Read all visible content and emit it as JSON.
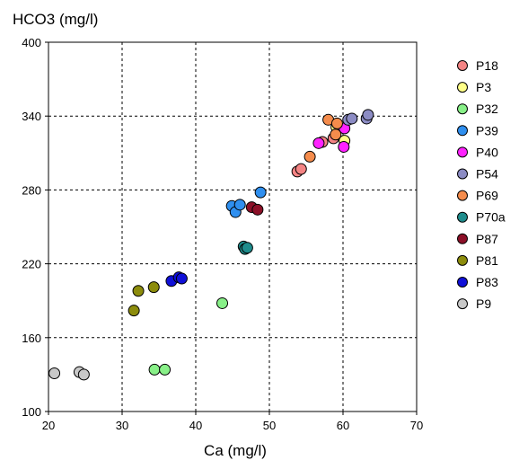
{
  "chart_data": {
    "type": "scatter",
    "xlabel": "Ca (mg/l)",
    "ylabel": "HCO3 (mg/l)",
    "xlim": [
      20,
      70
    ],
    "ylim": [
      100,
      400
    ],
    "xticks": [
      "20",
      "30",
      "40",
      "50",
      "60",
      "70"
    ],
    "yticks": [
      "100",
      "160",
      "220",
      "280",
      "340",
      "400"
    ],
    "grid": true,
    "legend_position": "right",
    "series": [
      {
        "name": "P18",
        "color": "#f48484",
        "points": [
          [
            53.8,
            295
          ],
          [
            54.3,
            297
          ],
          [
            57.2,
            319
          ],
          [
            58.7,
            322
          ]
        ]
      },
      {
        "name": "P3",
        "color": "#ffff88",
        "points": [
          [
            60.2,
            320
          ],
          [
            59.1,
            331
          ]
        ]
      },
      {
        "name": "P32",
        "color": "#88f088",
        "points": [
          [
            34.4,
            134
          ],
          [
            35.8,
            134
          ],
          [
            43.6,
            188
          ]
        ]
      },
      {
        "name": "P39",
        "color": "#2f8fef",
        "points": [
          [
            44.9,
            267
          ],
          [
            45.4,
            262
          ],
          [
            46.0,
            268
          ],
          [
            48.8,
            278
          ]
        ]
      },
      {
        "name": "P40",
        "color": "#ff22ff",
        "points": [
          [
            56.7,
            318
          ],
          [
            60.1,
            315
          ],
          [
            60.2,
            330
          ]
        ]
      },
      {
        "name": "P54",
        "color": "#8c8cc4",
        "points": [
          [
            60.7,
            337
          ],
          [
            61.2,
            338
          ],
          [
            63.2,
            338
          ],
          [
            63.4,
            341
          ]
        ]
      },
      {
        "name": "P69",
        "color": "#f58c4c",
        "points": [
          [
            55.5,
            307
          ],
          [
            58.0,
            337
          ],
          [
            59.0,
            325
          ],
          [
            59.2,
            334
          ]
        ]
      },
      {
        "name": "P70a",
        "color": "#1e8c8c",
        "points": [
          [
            46.5,
            234
          ],
          [
            46.7,
            232
          ],
          [
            47.0,
            233
          ]
        ]
      },
      {
        "name": "P87",
        "color": "#8c1028",
        "points": [
          [
            47.6,
            266
          ],
          [
            48.4,
            264
          ]
        ]
      },
      {
        "name": "P81",
        "color": "#8c8c0c",
        "points": [
          [
            31.6,
            182
          ],
          [
            32.2,
            198
          ],
          [
            34.3,
            201
          ]
        ]
      },
      {
        "name": "P83",
        "color": "#1010d8",
        "points": [
          [
            36.7,
            206
          ],
          [
            37.7,
            209
          ],
          [
            38.1,
            208
          ]
        ]
      },
      {
        "name": "P9",
        "color": "#c8c8c8",
        "points": [
          [
            20.8,
            131
          ],
          [
            24.2,
            132
          ],
          [
            24.8,
            130
          ]
        ]
      }
    ]
  }
}
